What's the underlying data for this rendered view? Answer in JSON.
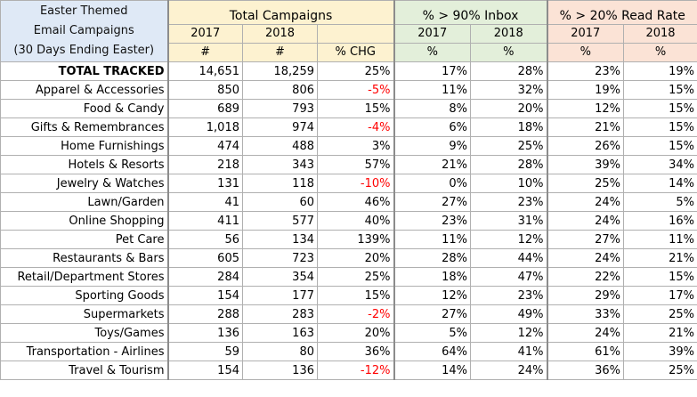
{
  "header": {
    "title_lines": [
      "Easter Themed",
      "Email Campaigns",
      "(30 Days Ending Easter)"
    ],
    "groups": {
      "total": "Total Campaigns",
      "inbox": "% > 90% Inbox",
      "read": "% > 20% Read Rate"
    },
    "years": {
      "total_2017": "2017",
      "total_2018": "2018",
      "inbox_2017": "2017",
      "inbox_2018": "2018",
      "read_2017": "2017",
      "read_2018": "2018"
    },
    "units": {
      "total_2017": "#",
      "total_2018": "#",
      "total_chg": "% CHG",
      "inbox_2017": "%",
      "inbox_2018": "%",
      "read_2017": "%",
      "read_2018": "%"
    }
  },
  "rows": [
    {
      "label": "TOTAL TRACKED",
      "c2017": "14,651",
      "c2018": "18,259",
      "chg": "25%",
      "in2017": "17%",
      "in2018": "28%",
      "rd2017": "23%",
      "rd2018": "19%"
    },
    {
      "label": "Apparel & Accessories",
      "c2017": "850",
      "c2018": "806",
      "chg": "-5%",
      "in2017": "11%",
      "in2018": "32%",
      "rd2017": "19%",
      "rd2018": "15%"
    },
    {
      "label": "Food & Candy",
      "c2017": "689",
      "c2018": "793",
      "chg": "15%",
      "in2017": "8%",
      "in2018": "20%",
      "rd2017": "12%",
      "rd2018": "15%"
    },
    {
      "label": "Gifts & Remembrances",
      "c2017": "1,018",
      "c2018": "974",
      "chg": "-4%",
      "in2017": "6%",
      "in2018": "18%",
      "rd2017": "21%",
      "rd2018": "15%"
    },
    {
      "label": "Home Furnishings",
      "c2017": "474",
      "c2018": "488",
      "chg": "3%",
      "in2017": "9%",
      "in2018": "25%",
      "rd2017": "26%",
      "rd2018": "15%"
    },
    {
      "label": "Hotels & Resorts",
      "c2017": "218",
      "c2018": "343",
      "chg": "57%",
      "in2017": "21%",
      "in2018": "28%",
      "rd2017": "39%",
      "rd2018": "34%"
    },
    {
      "label": "Jewelry & Watches",
      "c2017": "131",
      "c2018": "118",
      "chg": "-10%",
      "in2017": "0%",
      "in2018": "10%",
      "rd2017": "25%",
      "rd2018": "14%"
    },
    {
      "label": "Lawn/Garden",
      "c2017": "41",
      "c2018": "60",
      "chg": "46%",
      "in2017": "27%",
      "in2018": "23%",
      "rd2017": "24%",
      "rd2018": "5%"
    },
    {
      "label": "Online Shopping",
      "c2017": "411",
      "c2018": "577",
      "chg": "40%",
      "in2017": "23%",
      "in2018": "31%",
      "rd2017": "24%",
      "rd2018": "16%"
    },
    {
      "label": "Pet Care",
      "c2017": "56",
      "c2018": "134",
      "chg": "139%",
      "in2017": "11%",
      "in2018": "12%",
      "rd2017": "27%",
      "rd2018": "11%"
    },
    {
      "label": "Restaurants & Bars",
      "c2017": "605",
      "c2018": "723",
      "chg": "20%",
      "in2017": "28%",
      "in2018": "44%",
      "rd2017": "24%",
      "rd2018": "21%"
    },
    {
      "label": "Retail/Department Stores",
      "c2017": "284",
      "c2018": "354",
      "chg": "25%",
      "in2017": "18%",
      "in2018": "47%",
      "rd2017": "22%",
      "rd2018": "15%"
    },
    {
      "label": "Sporting Goods",
      "c2017": "154",
      "c2018": "177",
      "chg": "15%",
      "in2017": "12%",
      "in2018": "23%",
      "rd2017": "29%",
      "rd2018": "17%"
    },
    {
      "label": "Supermarkets",
      "c2017": "288",
      "c2018": "283",
      "chg": "-2%",
      "in2017": "27%",
      "in2018": "49%",
      "rd2017": "33%",
      "rd2018": "25%"
    },
    {
      "label": "Toys/Games",
      "c2017": "136",
      "c2018": "163",
      "chg": "20%",
      "in2017": "5%",
      "in2018": "12%",
      "rd2017": "24%",
      "rd2018": "21%"
    },
    {
      "label": "Transportation - Airlines",
      "c2017": "59",
      "c2018": "80",
      "chg": "36%",
      "in2017": "64%",
      "in2018": "41%",
      "rd2017": "61%",
      "rd2018": "39%"
    },
    {
      "label": "Travel & Tourism",
      "c2017": "154",
      "c2018": "136",
      "chg": "-12%",
      "in2017": "14%",
      "in2018": "24%",
      "rd2017": "36%",
      "rd2018": "25%"
    }
  ],
  "colors": {
    "title_bg": "#dfe9f6",
    "total_bg": "#fdf2d0",
    "inbox_bg": "#e3efda",
    "read_bg": "#fbe3d6",
    "negative": "#ff0000"
  }
}
